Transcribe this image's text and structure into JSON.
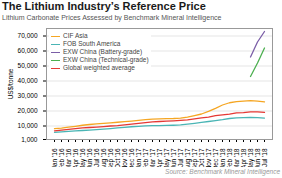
{
  "chart_data": {
    "type": "line",
    "title": "The Lithium Industry’s Reference Price",
    "subtitle": "Lithium Carbonate Prices Assessed by Benchmark Mineral Intelligence",
    "source": "Source: Benchmark Mineral Intelligence",
    "ylabel": "US$/tonne",
    "categories": [
      "Jan '16",
      "Feb '16",
      "Mar '16",
      "Apr '16",
      "May '16",
      "Jun '16",
      "Jul '16",
      "Aug '16",
      "Sep '16",
      "Oct '16",
      "Nov '16",
      "Dec '16",
      "Jan '17",
      "Feb '17",
      "Mar '17",
      "Apr '17",
      "May '17",
      "Jun '17",
      "Jul '17",
      "Aug '17",
      "Sep '17",
      "Oct '17",
      "Nov '17",
      "Dec '17",
      "Jan '18",
      "Feb '18",
      "Mar '18",
      "Apr '18",
      "May '18",
      "Jun '18",
      "Jul '18"
    ],
    "series": [
      {
        "name": "CIF Asia",
        "color": "#f5a623",
        "values": [
          8200,
          8600,
          9200,
          9800,
          10500,
          11000,
          11400,
          11700,
          12100,
          12500,
          12900,
          13300,
          13700,
          14200,
          14600,
          14800,
          14900,
          15000,
          15300,
          15900,
          16900,
          18000,
          19800,
          21800,
          24000,
          25500,
          26200,
          26600,
          26900,
          26600,
          26100
        ]
      },
      {
        "name": "FOB South America",
        "color": "#4ab5b5",
        "values": [
          5800,
          6100,
          6400,
          6700,
          7000,
          7300,
          7600,
          7900,
          8300,
          8700,
          9100,
          9500,
          9800,
          10100,
          10300,
          10300,
          10400,
          10500,
          10700,
          11200,
          11800,
          12400,
          13000,
          13600,
          14200,
          15000,
          15400,
          15600,
          15700,
          15600,
          15300
        ]
      },
      {
        "name": "EXW China (Battery-grade)",
        "color": "#7b5ea7",
        "values": [
          null,
          null,
          null,
          null,
          null,
          null,
          null,
          null,
          null,
          null,
          null,
          null,
          null,
          null,
          null,
          null,
          null,
          null,
          null,
          null,
          null,
          null,
          null,
          null,
          null,
          null,
          null,
          null,
          56000,
          66000,
          73000
        ]
      },
      {
        "name": "EXW China (Technical-grade)",
        "color": "#4caf50",
        "values": [
          null,
          null,
          null,
          null,
          null,
          null,
          null,
          null,
          null,
          null,
          null,
          null,
          null,
          null,
          null,
          null,
          null,
          null,
          null,
          null,
          null,
          null,
          null,
          null,
          null,
          null,
          null,
          null,
          43000,
          52000,
          62000
        ]
      },
      {
        "name": "Global weighted average",
        "color": "#e53935",
        "values": [
          6800,
          7200,
          7700,
          8200,
          8800,
          9000,
          9300,
          9600,
          10000,
          10300,
          10800,
          11300,
          11800,
          12300,
          12800,
          13000,
          13200,
          13400,
          13700,
          14100,
          14700,
          15400,
          15900,
          16900,
          17400,
          17900,
          18700,
          18900,
          19400,
          19400,
          19100
        ]
      }
    ],
    "ylim": [
      1000,
      75000
    ],
    "yticks": [
      {
        "value": 1000,
        "label": "1,000"
      },
      {
        "value": 10000,
        "label": "10,000"
      },
      {
        "value": 20000,
        "label": "20,000"
      },
      {
        "value": 30000,
        "label": "30,000"
      },
      {
        "value": 40000,
        "label": "40,000"
      },
      {
        "value": 50000,
        "label": "50,000"
      },
      {
        "value": 60000,
        "label": "60,000"
      },
      {
        "value": 70000,
        "label": "70,000"
      }
    ],
    "grid": true,
    "legend": "upper left"
  }
}
